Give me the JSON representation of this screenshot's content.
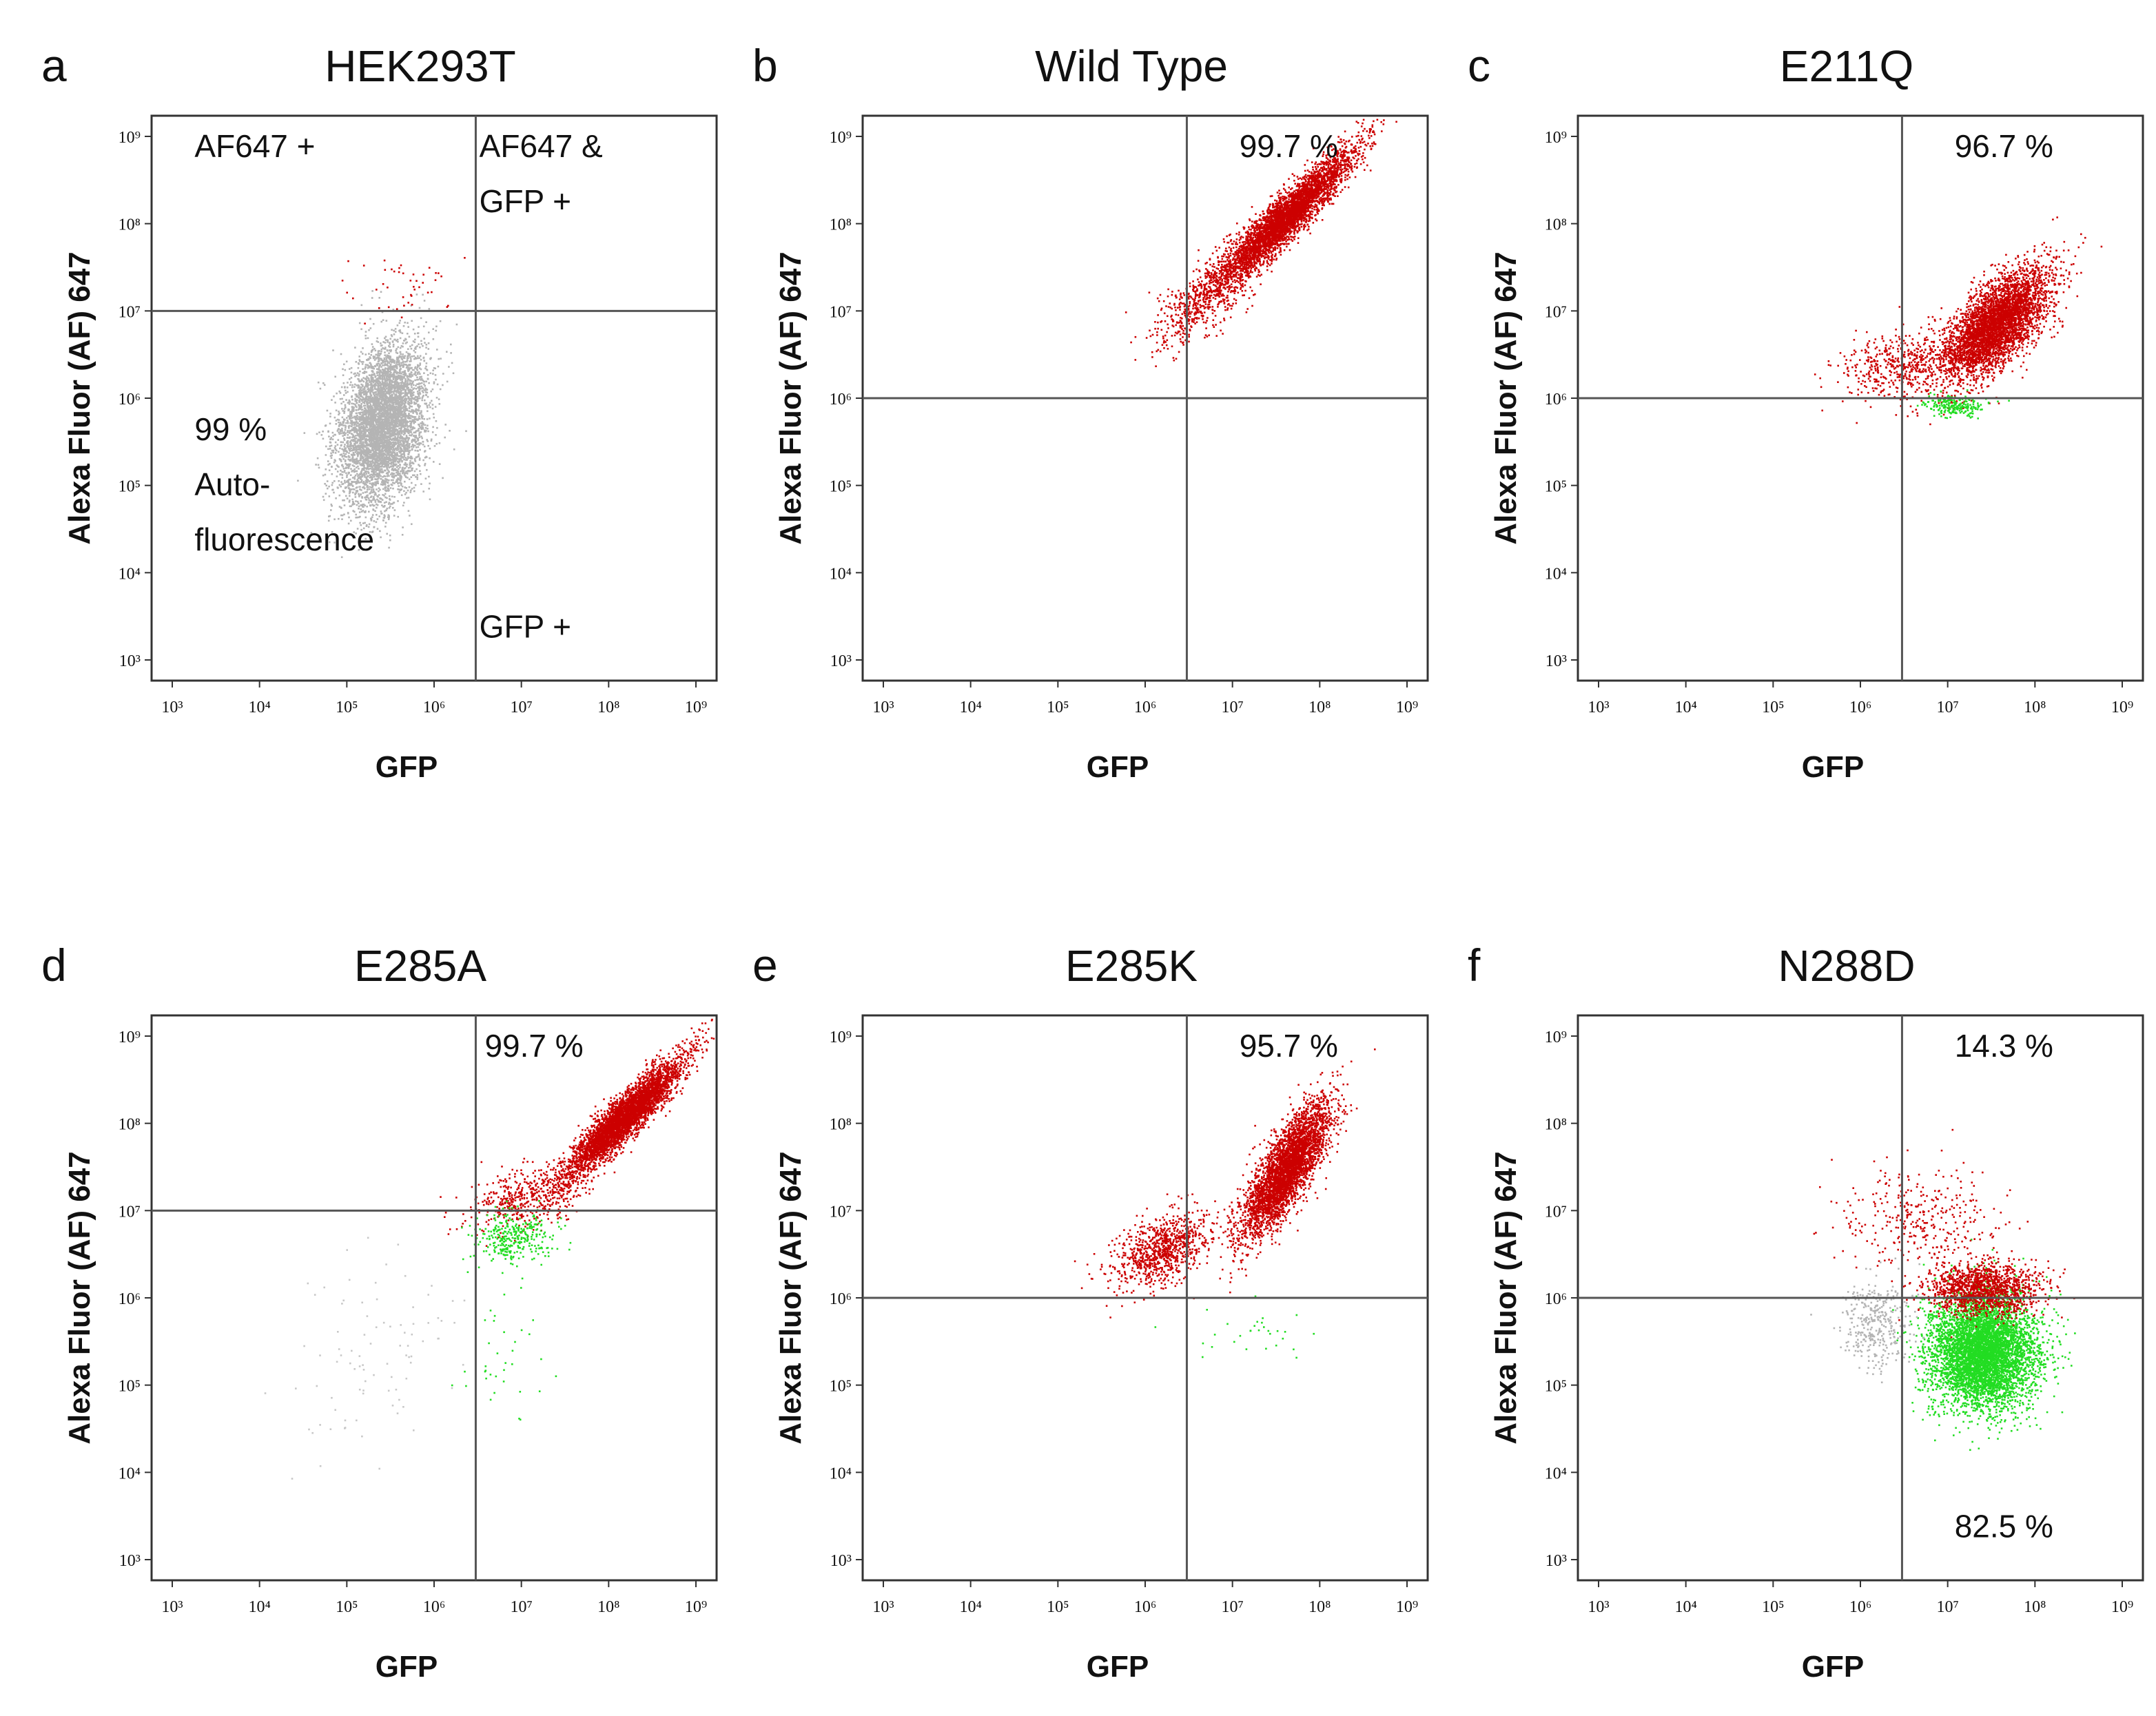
{
  "chart_data": [
    {
      "type": "scatter",
      "panel": "a",
      "title": "HEK293T",
      "xlabel": "GFP",
      "ylabel": "Alexa Fluor (AF) 647",
      "xscale": "log",
      "yscale": "log",
      "xlim": [
        1000,
        1000000000
      ],
      "ylim": [
        1000,
        1000000000
      ],
      "x_ticks": [
        {
          "value": 1000,
          "label": "10³"
        },
        {
          "value": 10000,
          "label": "10⁴"
        },
        {
          "value": 100000,
          "label": "10⁵"
        },
        {
          "value": 1000000,
          "label": "10⁶"
        },
        {
          "value": 10000000,
          "label": "10⁷"
        },
        {
          "value": 100000000,
          "label": "10⁸"
        },
        {
          "value": 1000000000,
          "label": "10⁹"
        }
      ],
      "y_ticks": [
        {
          "value": 1000,
          "label": "10³"
        },
        {
          "value": 10000,
          "label": "10⁴"
        },
        {
          "value": 100000,
          "label": "10⁵"
        },
        {
          "value": 1000000,
          "label": "10⁶"
        },
        {
          "value": 10000000,
          "label": "10⁷"
        },
        {
          "value": 100000000,
          "label": "10⁸"
        },
        {
          "value": 1000000000,
          "label": "10⁹"
        }
      ],
      "gate": {
        "x": 3000000,
        "y": 10000000
      },
      "annotations": [
        {
          "lines": [
            "AF647 +"
          ],
          "position": "top-left",
          "x": 1800,
          "y": 900000000
        },
        {
          "lines": [
            "AF647 &",
            "GFP +"
          ],
          "position": "top-right",
          "x": 3300000,
          "y": 900000000
        },
        {
          "lines": [
            "99 %",
            "Auto-",
            "fluorescence"
          ],
          "position": "bottom-left",
          "x": 1800,
          "y": 18000
        },
        {
          "lines": [
            "GFP +"
          ],
          "position": "bottom-right",
          "x": 3300000,
          "y": 1800
        }
      ],
      "populations": [
        {
          "color": "#b4b4b4",
          "center": [
            250000,
            500000
          ],
          "spread": [
            0.25,
            0.45
          ],
          "corr": 0.3,
          "count": 5500
        },
        {
          "color": "#cc0000",
          "center": [
            500000,
            18000000
          ],
          "spread": [
            0.35,
            0.18
          ],
          "corr": 0,
          "count": 45
        }
      ]
    },
    {
      "type": "scatter",
      "panel": "b",
      "title": "Wild Type",
      "xlabel": "GFP",
      "ylabel": "Alexa Fluor (AF) 647",
      "xscale": "log",
      "yscale": "log",
      "xlim": [
        1000,
        1000000000
      ],
      "ylim": [
        1000,
        1000000000
      ],
      "x_ticks": [
        {
          "value": 1000,
          "label": "10³"
        },
        {
          "value": 10000,
          "label": "10⁴"
        },
        {
          "value": 100000,
          "label": "10⁵"
        },
        {
          "value": 1000000,
          "label": "10⁶"
        },
        {
          "value": 10000000,
          "label": "10⁷"
        },
        {
          "value": 100000000,
          "label": "10⁸"
        },
        {
          "value": 1000000000,
          "label": "10⁹"
        }
      ],
      "y_ticks": [
        {
          "value": 1000,
          "label": "10³"
        },
        {
          "value": 10000,
          "label": "10⁴"
        },
        {
          "value": 100000,
          "label": "10⁵"
        },
        {
          "value": 1000000,
          "label": "10⁶"
        },
        {
          "value": 10000000,
          "label": "10⁷"
        },
        {
          "value": 100000000,
          "label": "10⁸"
        },
        {
          "value": 1000000000,
          "label": "10⁹"
        }
      ],
      "gate": {
        "x": 3000000,
        "y": 1000000
      },
      "annotations": [
        {
          "lines": [
            "99.7 %"
          ],
          "position": "top-right",
          "x": 12000000,
          "y": 900000000
        }
      ],
      "populations": [
        {
          "color": "#cc0000",
          "center": [
            40000000,
            120000000
          ],
          "spread": [
            0.38,
            0.38
          ],
          "corr": 0.93,
          "count": 4200
        },
        {
          "color": "#cc0000",
          "center": [
            5000000,
            15000000
          ],
          "spread": [
            0.3,
            0.3
          ],
          "corr": 0.7,
          "count": 600
        }
      ]
    },
    {
      "type": "scatter",
      "panel": "c",
      "title": "E211Q",
      "xlabel": "GFP",
      "ylabel": "Alexa Fluor (AF) 647",
      "xscale": "log",
      "yscale": "log",
      "xlim": [
        1000,
        1000000000
      ],
      "ylim": [
        1000,
        1000000000
      ],
      "x_ticks": [
        {
          "value": 1000,
          "label": "10³"
        },
        {
          "value": 10000,
          "label": "10⁴"
        },
        {
          "value": 100000,
          "label": "10⁵"
        },
        {
          "value": 1000000,
          "label": "10⁶"
        },
        {
          "value": 10000000,
          "label": "10⁷"
        },
        {
          "value": 100000000,
          "label": "10⁸"
        },
        {
          "value": 1000000000,
          "label": "10⁹"
        }
      ],
      "y_ticks": [
        {
          "value": 1000,
          "label": "10³"
        },
        {
          "value": 10000,
          "label": "10⁴"
        },
        {
          "value": 100000,
          "label": "10⁵"
        },
        {
          "value": 1000000,
          "label": "10⁶"
        },
        {
          "value": 10000000,
          "label": "10⁷"
        },
        {
          "value": 100000000,
          "label": "10⁸"
        },
        {
          "value": 1000000000,
          "label": "10⁹"
        }
      ],
      "gate": {
        "x": 3000000,
        "y": 1000000
      },
      "annotations": [
        {
          "lines": [
            "96.7 %"
          ],
          "position": "top-right",
          "x": 12000000,
          "y": 900000000
        }
      ],
      "populations": [
        {
          "color": "#cc0000",
          "center": [
            35000000,
            7000000
          ],
          "spread": [
            0.3,
            0.32
          ],
          "corr": 0.65,
          "count": 4200
        },
        {
          "color": "#cc0000",
          "center": [
            3000000,
            2500000
          ],
          "spread": [
            0.35,
            0.2
          ],
          "corr": 0.3,
          "count": 500
        },
        {
          "color": "#22dd22",
          "center": [
            12000000,
            850000
          ],
          "spread": [
            0.18,
            0.06
          ],
          "corr": 0,
          "count": 220
        }
      ]
    },
    {
      "type": "scatter",
      "panel": "d",
      "title": "E285A",
      "xlabel": "GFP",
      "ylabel": "Alexa Fluor (AF) 647",
      "xscale": "log",
      "yscale": "log",
      "xlim": [
        1000,
        1000000000
      ],
      "ylim": [
        1000,
        1000000000
      ],
      "x_ticks": [
        {
          "value": 1000,
          "label": "10³"
        },
        {
          "value": 10000,
          "label": "10⁴"
        },
        {
          "value": 100000,
          "label": "10⁵"
        },
        {
          "value": 1000000,
          "label": "10⁶"
        },
        {
          "value": 10000000,
          "label": "10⁷"
        },
        {
          "value": 100000000,
          "label": "10⁸"
        },
        {
          "value": 1000000000,
          "label": "10⁹"
        }
      ],
      "y_ticks": [
        {
          "value": 1000,
          "label": "10³"
        },
        {
          "value": 10000,
          "label": "10⁴"
        },
        {
          "value": 100000,
          "label": "10⁵"
        },
        {
          "value": 1000000,
          "label": "10⁶"
        },
        {
          "value": 10000000,
          "label": "10⁷"
        },
        {
          "value": 100000000,
          "label": "10⁸"
        },
        {
          "value": 1000000000,
          "label": "10⁹"
        }
      ],
      "gate": {
        "x": 3000000,
        "y": 10000000
      },
      "annotations": [
        {
          "lines": [
            "99.7 %"
          ],
          "position": "top-right",
          "x": 3800000,
          "y": 900000000
        }
      ],
      "populations": [
        {
          "color": "#cc0000",
          "center": [
            150000000,
            120000000
          ],
          "spread": [
            0.33,
            0.33
          ],
          "corr": 0.92,
          "count": 4200
        },
        {
          "color": "#cc0000",
          "center": [
            12000000,
            15000000
          ],
          "spread": [
            0.35,
            0.18
          ],
          "corr": 0.5,
          "count": 500
        },
        {
          "color": "#22dd22",
          "center": [
            8000000,
            5000000
          ],
          "spread": [
            0.22,
            0.15
          ],
          "corr": 0,
          "count": 320
        },
        {
          "color": "#22dd22",
          "center": [
            6000000,
            200000
          ],
          "spread": [
            0.2,
            0.4
          ],
          "corr": 0,
          "count": 35
        },
        {
          "color": "#c8c8c8",
          "center": [
            200000,
            200000
          ],
          "spread": [
            0.6,
            0.6
          ],
          "corr": 0.4,
          "count": 90
        }
      ]
    },
    {
      "type": "scatter",
      "panel": "e",
      "title": "E285K",
      "xlabel": "GFP",
      "ylabel": "Alexa Fluor (AF) 647",
      "xscale": "log",
      "yscale": "log",
      "xlim": [
        1000,
        1000000000
      ],
      "ylim": [
        1000,
        1000000000
      ],
      "x_ticks": [
        {
          "value": 1000,
          "label": "10³"
        },
        {
          "value": 10000,
          "label": "10⁴"
        },
        {
          "value": 100000,
          "label": "10⁵"
        },
        {
          "value": 1000000,
          "label": "10⁶"
        },
        {
          "value": 10000000,
          "label": "10⁷"
        },
        {
          "value": 100000000,
          "label": "10⁸"
        },
        {
          "value": 1000000000,
          "label": "10⁹"
        }
      ],
      "y_ticks": [
        {
          "value": 1000,
          "label": "10³"
        },
        {
          "value": 10000,
          "label": "10⁴"
        },
        {
          "value": 100000,
          "label": "10⁵"
        },
        {
          "value": 1000000,
          "label": "10⁶"
        },
        {
          "value": 10000000,
          "label": "10⁷"
        },
        {
          "value": 100000000,
          "label": "10⁸"
        },
        {
          "value": 1000000000,
          "label": "10⁹"
        }
      ],
      "gate": {
        "x": 3000000,
        "y": 1000000
      },
      "annotations": [
        {
          "lines": [
            "95.7 %"
          ],
          "position": "top-right",
          "x": 12000000,
          "y": 900000000
        }
      ],
      "populations": [
        {
          "color": "#cc0000",
          "center": [
            40000000,
            30000000
          ],
          "spread": [
            0.25,
            0.38
          ],
          "corr": 0.8,
          "count": 3800
        },
        {
          "color": "#cc0000",
          "center": [
            1500000,
            3500000
          ],
          "spread": [
            0.28,
            0.22
          ],
          "corr": 0.5,
          "count": 900
        },
        {
          "color": "#22dd22",
          "center": [
            20000000,
            450000
          ],
          "spread": [
            0.35,
            0.2
          ],
          "corr": 0,
          "count": 30
        }
      ]
    },
    {
      "type": "scatter",
      "panel": "f",
      "title": "N288D",
      "xlabel": "GFP",
      "ylabel": "Alexa Fluor (AF) 647",
      "xscale": "log",
      "yscale": "log",
      "xlim": [
        1000,
        1000000000
      ],
      "ylim": [
        1000,
        1000000000
      ],
      "x_ticks": [
        {
          "value": 1000,
          "label": "10³"
        },
        {
          "value": 10000,
          "label": "10⁴"
        },
        {
          "value": 100000,
          "label": "10⁵"
        },
        {
          "value": 1000000,
          "label": "10⁶"
        },
        {
          "value": 10000000,
          "label": "10⁷"
        },
        {
          "value": 100000000,
          "label": "10⁸"
        },
        {
          "value": 1000000000,
          "label": "10⁹"
        }
      ],
      "y_ticks": [
        {
          "value": 1000,
          "label": "10³"
        },
        {
          "value": 10000,
          "label": "10⁴"
        },
        {
          "value": 100000,
          "label": "10⁵"
        },
        {
          "value": 1000000,
          "label": "10⁶"
        },
        {
          "value": 10000000,
          "label": "10⁷"
        },
        {
          "value": 100000000,
          "label": "10⁸"
        },
        {
          "value": 1000000000,
          "label": "10⁹"
        }
      ],
      "gate": {
        "x": 3000000,
        "y": 1000000
      },
      "annotations": [
        {
          "lines": [
            "14.3 %"
          ],
          "position": "top-right",
          "x": 12000000,
          "y": 900000000
        },
        {
          "lines": [
            "82.5 %"
          ],
          "position": "bottom-right",
          "x": 12000000,
          "y": 1800
        }
      ],
      "populations": [
        {
          "color": "#22dd22",
          "center": [
            25000000,
            250000
          ],
          "spread": [
            0.3,
            0.32
          ],
          "corr": 0,
          "count": 5500
        },
        {
          "color": "#cc0000",
          "center": [
            25000000,
            1300000
          ],
          "spread": [
            0.32,
            0.15
          ],
          "corr": 0,
          "count": 1400
        },
        {
          "color": "#cc0000",
          "center": [
            5000000,
            8000000
          ],
          "spread": [
            0.45,
            0.3
          ],
          "corr": 0,
          "count": 350
        },
        {
          "color": "#b4b4b4",
          "center": [
            1500000,
            500000
          ],
          "spread": [
            0.2,
            0.25
          ],
          "corr": 0,
          "count": 350
        }
      ]
    }
  ]
}
